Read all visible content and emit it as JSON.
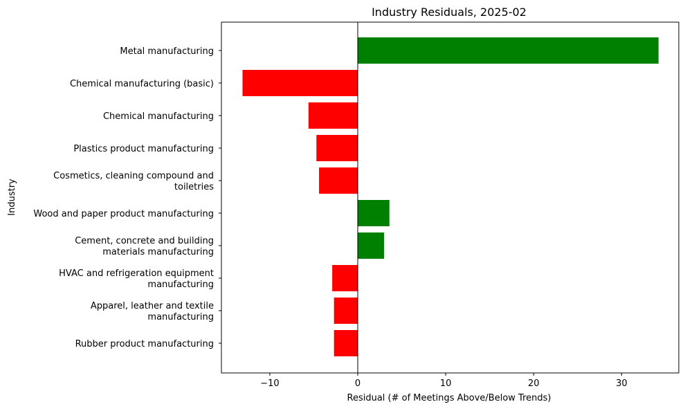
{
  "chart_data": {
    "type": "bar",
    "orientation": "horizontal",
    "title": "Industry Residuals, 2025-02",
    "xlabel": "Residual (# of Meetings Above/Below Trends)",
    "ylabel": "Industry",
    "xlim": [
      -15.5,
      36.5
    ],
    "xticks": [
      -10,
      0,
      10,
      20,
      30
    ],
    "xtick_labels": [
      "−10",
      "0",
      "10",
      "20",
      "30"
    ],
    "grid": false,
    "zero_line": true,
    "colors": {
      "positive": "#008000",
      "negative": "#ff0000"
    },
    "categories": [
      [
        "Metal manufacturing"
      ],
      [
        "Chemical manufacturing (basic)"
      ],
      [
        "Chemical manufacturing"
      ],
      [
        "Plastics product manufacturing"
      ],
      [
        "Cosmetics, cleaning compound and",
        "toiletries"
      ],
      [
        "Wood and paper product manufacturing"
      ],
      [
        "Cement, concrete and building",
        "materials manufacturing"
      ],
      [
        "HVAC and refrigeration equipment",
        "manufacturing"
      ],
      [
        "Apparel, leather and textile",
        "manufacturing"
      ],
      [
        "Rubber product manufacturing"
      ]
    ],
    "values": [
      34.2,
      -13.1,
      -5.6,
      -4.7,
      -4.4,
      3.6,
      3.0,
      -2.9,
      -2.7,
      -2.7
    ]
  }
}
